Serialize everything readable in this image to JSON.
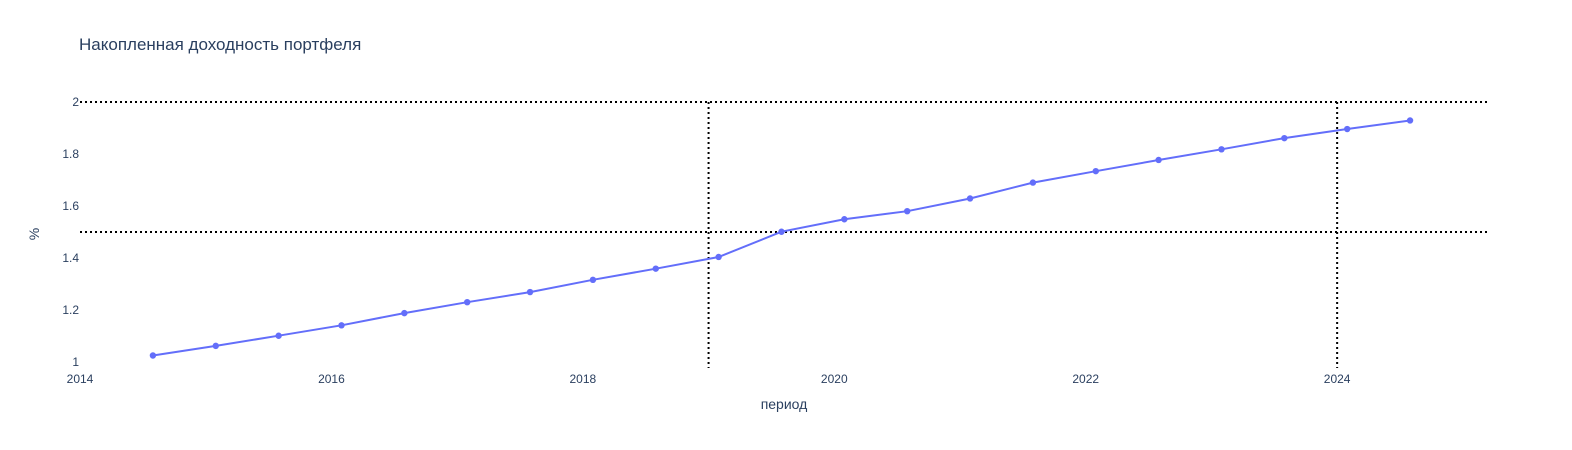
{
  "chart_data": {
    "type": "line",
    "title": "Накопленная доходность портфеля",
    "xlabel": "период",
    "ylabel": "%",
    "xlim": [
      2014,
      2025.2
    ],
    "ylim": [
      1.0,
      2.0
    ],
    "x_ticks": [
      {
        "value": 2014,
        "label": "2014"
      },
      {
        "value": 2016,
        "label": "2016"
      },
      {
        "value": 2018,
        "label": "2018"
      },
      {
        "value": 2020,
        "label": "2020"
      },
      {
        "value": 2022,
        "label": "2022"
      },
      {
        "value": 2024,
        "label": "2024"
      }
    ],
    "y_ticks": [
      {
        "value": 1.0,
        "label": "1"
      },
      {
        "value": 1.2,
        "label": "1.2"
      },
      {
        "value": 1.4,
        "label": "1.4"
      },
      {
        "value": 1.6,
        "label": "1.6"
      },
      {
        "value": 1.8,
        "label": "1.8"
      },
      {
        "value": 2.0,
        "label": "2"
      }
    ],
    "grid": false,
    "series": [
      {
        "color": "#636efa",
        "points": [
          {
            "x": 2014.58,
            "y": 1.025
          },
          {
            "x": 2015.08,
            "y": 1.062
          },
          {
            "x": 2015.58,
            "y": 1.101
          },
          {
            "x": 2016.08,
            "y": 1.141
          },
          {
            "x": 2016.58,
            "y": 1.188
          },
          {
            "x": 2017.08,
            "y": 1.23
          },
          {
            "x": 2017.58,
            "y": 1.269
          },
          {
            "x": 2018.08,
            "y": 1.316
          },
          {
            "x": 2018.58,
            "y": 1.359
          },
          {
            "x": 2019.08,
            "y": 1.404
          },
          {
            "x": 2019.58,
            "y": 1.501
          },
          {
            "x": 2020.08,
            "y": 1.549
          },
          {
            "x": 2020.58,
            "y": 1.58
          },
          {
            "x": 2021.08,
            "y": 1.629
          },
          {
            "x": 2021.58,
            "y": 1.69
          },
          {
            "x": 2022.08,
            "y": 1.734
          },
          {
            "x": 2022.58,
            "y": 1.777
          },
          {
            "x": 2023.08,
            "y": 1.818
          },
          {
            "x": 2023.58,
            "y": 1.861
          },
          {
            "x": 2024.08,
            "y": 1.896
          },
          {
            "x": 2024.58,
            "y": 1.929
          }
        ]
      }
    ],
    "reference_lines": [
      {
        "orientation": "horizontal",
        "value": 2.0,
        "color": "#000000",
        "style": "dotted"
      },
      {
        "orientation": "horizontal",
        "value": 1.5,
        "color": "#000000",
        "style": "dotted"
      },
      {
        "orientation": "vertical",
        "value": 2019.0,
        "color": "#000000",
        "style": "dotted"
      },
      {
        "orientation": "vertical",
        "value": 2024.0,
        "color": "#000000",
        "style": "dotted"
      }
    ]
  }
}
